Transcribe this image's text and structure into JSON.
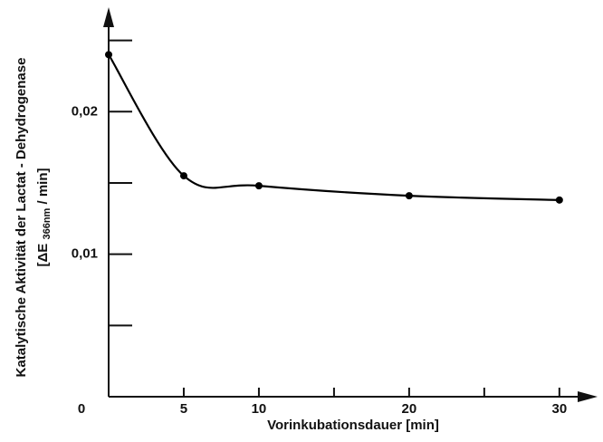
{
  "chart_data": {
    "type": "line",
    "xlabel": "Vorinkubationsdauer [min]",
    "ylabel": "Katalytische Aktivität der Lactat - Dehydrogenase",
    "ylabel_unit": {
      "prefix": "[ΔE",
      "subscript": "366nm",
      "suffix": "/ min]"
    },
    "x": [
      0,
      5,
      10,
      20,
      30
    ],
    "series": [
      {
        "color": "#000000",
        "values": [
          0.024,
          0.0155,
          0.0148,
          0.0141,
          0.0138
        ]
      }
    ],
    "xlim": [
      0,
      32.3
    ],
    "ylim": [
      0,
      0.0272
    ],
    "xticks": [
      0,
      5,
      10,
      20,
      30
    ],
    "xminorticks": [
      15,
      25
    ],
    "yticks": [
      {
        "value": 0.01,
        "label": "0,01"
      },
      {
        "value": 0.02,
        "label": "0,02"
      }
    ],
    "yminorticks": [
      0.005,
      0.015,
      0.025
    ],
    "grid": false
  }
}
